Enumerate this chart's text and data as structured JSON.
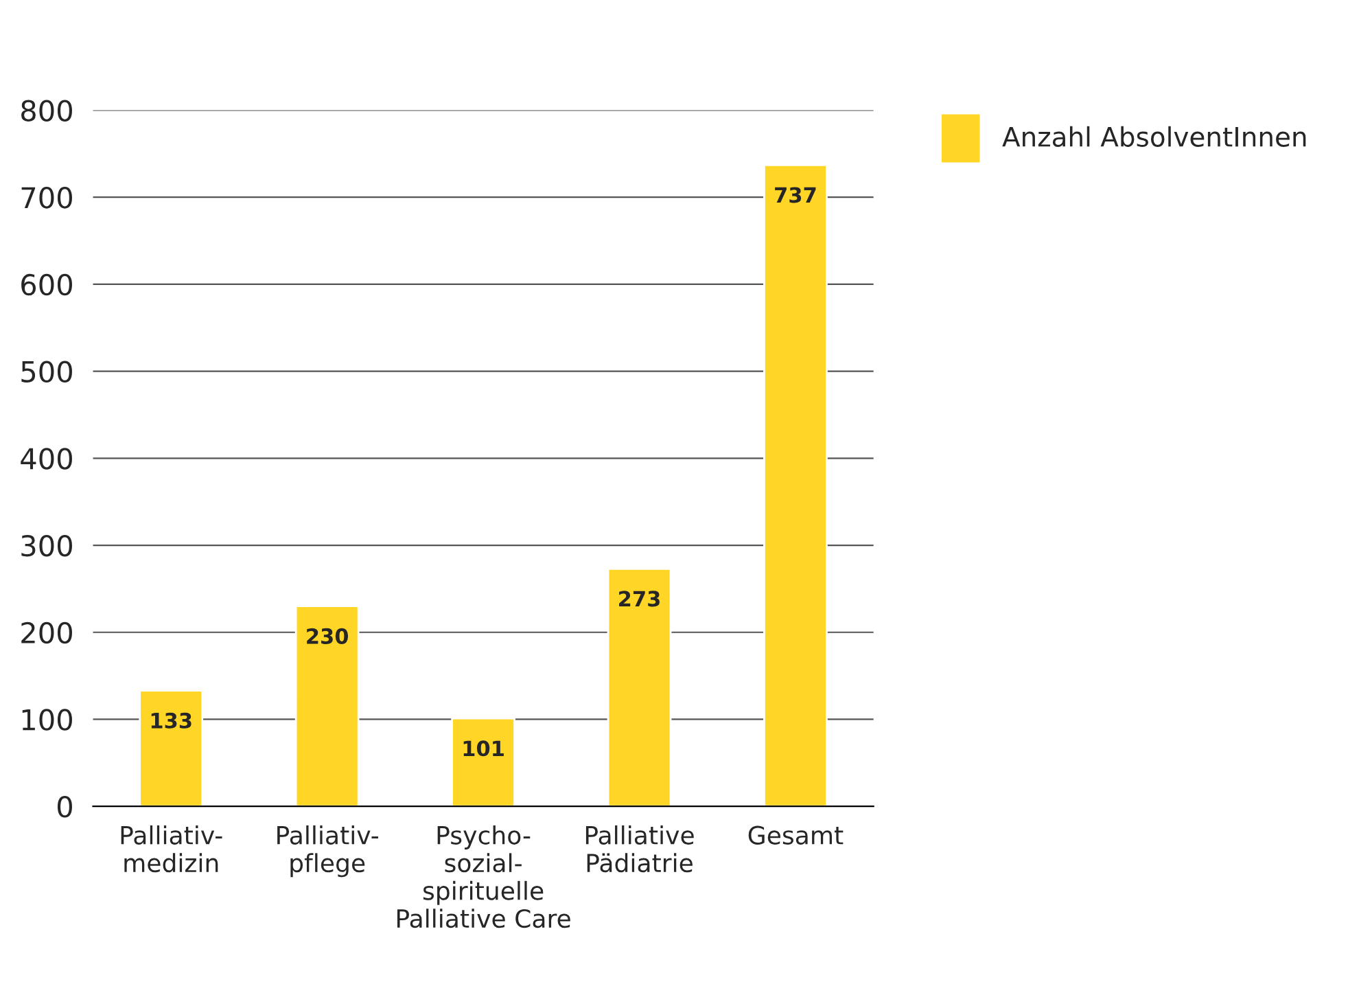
{
  "chart_data": {
    "type": "bar",
    "categories": [
      "Palliativ-\nmedizin",
      "Palliativ-\npflege",
      "Psycho-\nsozial-\nspirituelle\nPalliative Care",
      "Palliative\nPädiatrie",
      "Gesamt"
    ],
    "series": [
      {
        "name": "Anzahl AbsolventInnen",
        "color": "#ffd526",
        "values": [
          133,
          230,
          101,
          273,
          737
        ]
      }
    ],
    "ylim": [
      0,
      800
    ],
    "yticks": [
      0,
      100,
      200,
      300,
      400,
      500,
      600,
      700,
      800
    ],
    "grid": "y",
    "legend": "top right",
    "data_labels": true
  }
}
